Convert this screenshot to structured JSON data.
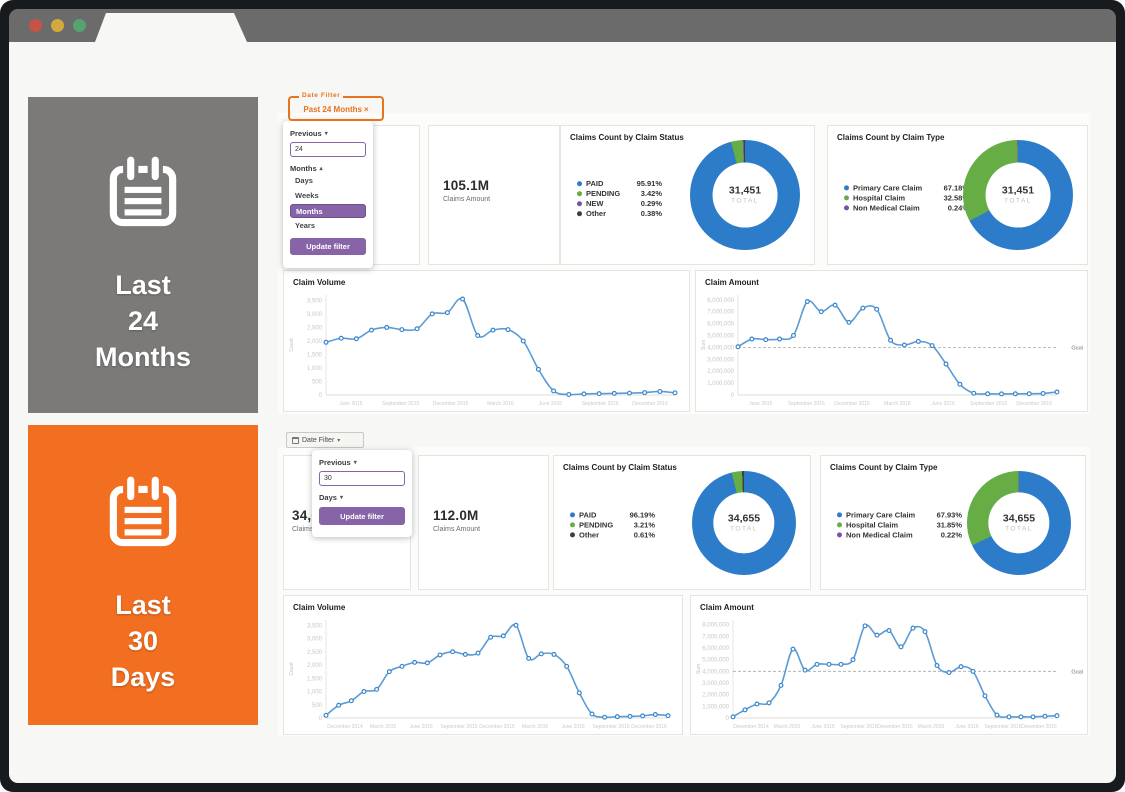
{
  "icons": {
    "close": "×",
    "caret_down": "▾",
    "caret_up": "▴"
  },
  "browser": {
    "light_colors": [
      "#c75347",
      "#d2a93c",
      "#57a273"
    ]
  },
  "sections": [
    {
      "tile": {
        "lines": [
          "Last",
          "24",
          "Months"
        ],
        "bg": "#7b7a78"
      },
      "filter": {
        "legend": "Date Filter",
        "chip": "Past 24 Months"
      },
      "dropdown": {
        "previous": "Previous",
        "value": "24",
        "unit": "Months",
        "options": [
          "Days",
          "Weeks",
          "Months",
          "Years"
        ],
        "selected": "Months",
        "button": "Update filter"
      },
      "kpi_count": {
        "value": "",
        "label": ""
      },
      "kpi_amount": {
        "value": "105.1M",
        "label": "Claims Amount"
      },
      "donut_status": {
        "title": "Claims Count by Claim Status",
        "total": "31,451",
        "total_label": "TOTAL",
        "segments": [
          {
            "label": "PAID",
            "pct": "95.91%",
            "value": 95.91,
            "color": "#2d7cc9"
          },
          {
            "label": "PENDING",
            "pct": "3.42%",
            "value": 3.42,
            "color": "#67ad45"
          },
          {
            "label": "NEW",
            "pct": "0.29%",
            "value": 0.29,
            "color": "#7c52a5"
          },
          {
            "label": "Other",
            "pct": "0.38%",
            "value": 0.38,
            "color": "#3f3f3f"
          }
        ]
      },
      "donut_type": {
        "title": "Claims Count by Claim Type",
        "total": "31,451",
        "total_label": "TOTAL",
        "segments": [
          {
            "label": "Primary Care Claim",
            "pct": "67.18%",
            "value": 67.18,
            "color": "#2d7cc9"
          },
          {
            "label": "Hospital Claim",
            "pct": "32.58%",
            "value": 32.58,
            "color": "#67ad45"
          },
          {
            "label": "Non Medical Claim",
            "pct": "0.24%",
            "value": 0.24,
            "color": "#7c52a5"
          }
        ]
      },
      "charts": {
        "volume": {
          "type": "line",
          "title": "Claim Volume",
          "ylabel": "Count",
          "ymax": 3700,
          "yticks": [
            3500,
            3000,
            2500,
            2000,
            1500,
            1000,
            500,
            0
          ],
          "ytick_labels": [
            "3,500",
            "3,000",
            "2,500",
            "2,000",
            "1,500",
            "1,000",
            "500",
            "0"
          ],
          "xlabels": [
            "June 2015",
            "September 2015",
            "December 2015",
            "March 2016",
            "June 2016",
            "September 2016",
            "December 2016"
          ],
          "values": [
            1950,
            2100,
            2080,
            2400,
            2500,
            2420,
            2450,
            3000,
            3050,
            3550,
            2200,
            2400,
            2420,
            2000,
            950,
            150,
            20,
            40,
            50,
            60,
            70,
            90,
            130,
            80
          ],
          "line_color": "#5b9bd5",
          "marker_color": "#3a86cc"
        },
        "amount": {
          "type": "line",
          "title": "Claim Amount",
          "ylabel": "Sum",
          "ymax": 8400000,
          "yticks": [
            8000000,
            7000000,
            6000000,
            5000000,
            4000000,
            3000000,
            2000000,
            1000000,
            0
          ],
          "ytick_labels": [
            "8,000,000",
            "7,000,000",
            "6,000,000",
            "5,000,000",
            "4,000,000",
            "3,000,000",
            "2,000,000",
            "1,000,000",
            "0"
          ],
          "xlabels": [
            "June 2015",
            "September 2015",
            "December 2015",
            "March 2016",
            "June 2016",
            "September 2016",
            "December 2016"
          ],
          "values": [
            4050000,
            4700000,
            4650000,
            4700000,
            5000000,
            7850000,
            7000000,
            7550000,
            6100000,
            7300000,
            7200000,
            4600000,
            4200000,
            4500000,
            4150000,
            2600000,
            900000,
            150000,
            100000,
            90000,
            100000,
            110000,
            130000,
            250000
          ],
          "goal": 4000000,
          "goal_label": "Goal",
          "line_color": "#5b9bd5",
          "marker_color": "#3a86cc"
        }
      }
    },
    {
      "tile": {
        "lines": [
          "Last",
          "30",
          "Days"
        ],
        "bg": "#f26f21"
      },
      "filter_button": {
        "label": "Date Filter"
      },
      "dropdown": {
        "previous": "Previous",
        "value": "30",
        "unit": "Days",
        "button": "Update filter"
      },
      "kpi_count": {
        "value": "34,655",
        "label": "Claims Count"
      },
      "kpi_amount": {
        "value": "112.0M",
        "label": "Claims Amount"
      },
      "donut_status": {
        "title": "Claims Count by Claim Status",
        "total": "34,655",
        "total_label": "TOTAL",
        "segments": [
          {
            "label": "PAID",
            "pct": "96.19%",
            "value": 96.19,
            "color": "#2d7cc9"
          },
          {
            "label": "PENDING",
            "pct": "3.21%",
            "value": 3.21,
            "color": "#67ad45"
          },
          {
            "label": "Other",
            "pct": "0.61%",
            "value": 0.61,
            "color": "#3f3f3f"
          }
        ]
      },
      "donut_type": {
        "title": "Claims Count by Claim Type",
        "total": "34,655",
        "total_label": "TOTAL",
        "segments": [
          {
            "label": "Primary Care Claim",
            "pct": "67.93%",
            "value": 67.93,
            "color": "#2d7cc9"
          },
          {
            "label": "Hospital Claim",
            "pct": "31.85%",
            "value": 31.85,
            "color": "#67ad45"
          },
          {
            "label": "Non Medical Claim",
            "pct": "0.22%",
            "value": 0.22,
            "color": "#7c52a5"
          }
        ]
      },
      "charts": {
        "volume": {
          "type": "line",
          "title": "Claim Volume",
          "ylabel": "Count",
          "ymax": 3700,
          "yticks": [
            3500,
            3000,
            2500,
            2000,
            1500,
            1000,
            500,
            0
          ],
          "ytick_labels": [
            "3,500",
            "3,000",
            "2,500",
            "2,000",
            "1,500",
            "1,000",
            "500",
            "0"
          ],
          "xlabels": [
            "December 2014",
            "March 2015",
            "June 2015",
            "September 2015",
            "December 2015",
            "March 2016",
            "June 2016",
            "September 2016",
            "December 2016"
          ],
          "values": [
            100,
            480,
            650,
            1000,
            1080,
            1750,
            1950,
            2100,
            2080,
            2380,
            2500,
            2400,
            2450,
            3050,
            3100,
            3500,
            2250,
            2420,
            2400,
            1950,
            950,
            150,
            30,
            50,
            60,
            80,
            130,
            90
          ],
          "line_color": "#5b9bd5",
          "marker_color": "#3a86cc"
        },
        "amount": {
          "type": "line",
          "title": "Claim Amount",
          "ylabel": "Sum",
          "ymax": 8400000,
          "yticks": [
            8000000,
            7000000,
            6000000,
            5000000,
            4000000,
            3000000,
            2000000,
            1000000,
            0
          ],
          "ytick_labels": [
            "8,000,000",
            "7,000,000",
            "6,000,000",
            "5,000,000",
            "4,000,000",
            "3,000,000",
            "2,000,000",
            "1,000,000",
            "0"
          ],
          "xlabels": [
            "December 2014",
            "March 2015",
            "June 2015",
            "September 2015",
            "December 2015",
            "March 2016",
            "June 2016",
            "September 2016",
            "December 2016"
          ],
          "values": [
            100000,
            700000,
            1200000,
            1300000,
            2800000,
            5900000,
            4100000,
            4600000,
            4600000,
            4600000,
            5000000,
            7900000,
            7100000,
            7500000,
            6100000,
            7700000,
            7400000,
            4500000,
            3900000,
            4400000,
            4000000,
            1900000,
            250000,
            100000,
            100000,
            100000,
            150000,
            200000
          ],
          "goal": 4000000,
          "goal_label": "Goal",
          "line_color": "#5b9bd5",
          "marker_color": "#3a86cc"
        }
      }
    }
  ]
}
